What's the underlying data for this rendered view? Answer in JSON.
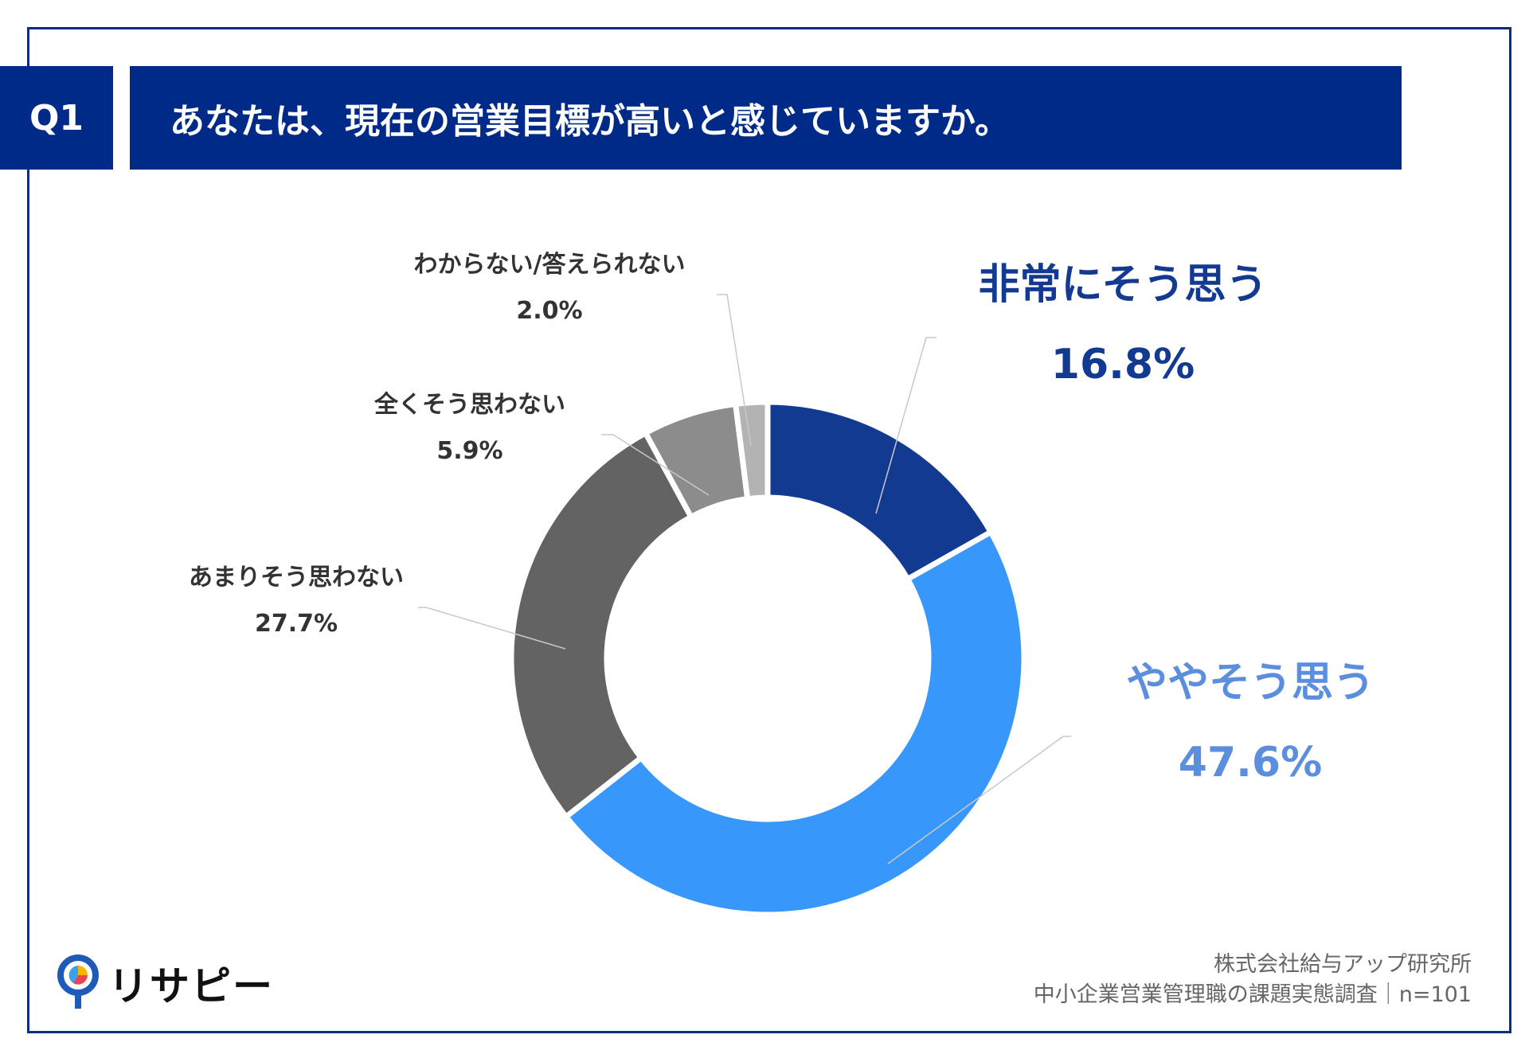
{
  "header": {
    "badge": "Q1",
    "title": "あなたは、現在の営業目標が高いと感じていますか。"
  },
  "chart_data": {
    "type": "pie",
    "title": "あなたは、現在の営業目標が高いと感じていますか。",
    "slices": [
      {
        "label": "非常にそう思う",
        "value": 16.8,
        "value_label": "16.8%",
        "color": "#123a91",
        "text_color": "#123a91"
      },
      {
        "label": "ややそう思う",
        "value": 47.6,
        "value_label": "47.6%",
        "color": "#3897fb",
        "text_color": "#5b8fdd"
      },
      {
        "label": "あまりそう思わない",
        "value": 27.7,
        "value_label": "27.7%",
        "color": "#636363",
        "text_color": "#333333"
      },
      {
        "label": "全くそう思わない",
        "value": 5.9,
        "value_label": "5.9%",
        "color": "#8c8c8c",
        "text_color": "#333333"
      },
      {
        "label": "わからない/答えられない",
        "value": 2.0,
        "value_label": "2.0%",
        "color": "#b3b3b3",
        "text_color": "#333333"
      }
    ]
  },
  "footer": {
    "line1": "株式会社給与アップ研究所",
    "line2": "中小企業営業管理職の課題実態調査｜n=101"
  },
  "logo": {
    "text": "リサピー"
  }
}
